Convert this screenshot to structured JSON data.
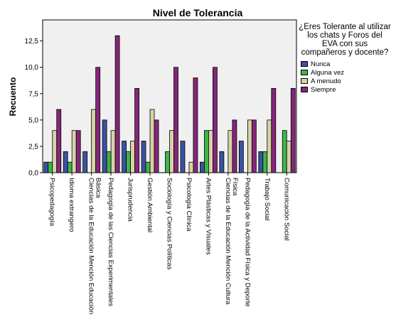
{
  "chart_data": {
    "type": "bar",
    "title": "Nivel de Tolerancia",
    "xlabel": "",
    "ylabel": "Recuento",
    "ylim": [
      0,
      14.5
    ],
    "yticks": [
      "0,0",
      "2,5",
      "5,0",
      "7,5",
      "10,0",
      "12,5"
    ],
    "grid": false,
    "legend_position": "right",
    "legend_title": "¿Eres Tolerante al utilizar los chats y Foros del EVA con sus compañeros y docente?",
    "categories": [
      "Psicopedagogía",
      "Idioma extrangero",
      "Ciencias de la Educación Mención Educación Básica",
      "Pedagogía de las Ciencias Experimentales",
      "Jurisprudencia",
      "Gestión Ambiental",
      "Sociología y Ciencias Políticas",
      "Psicología Clínica",
      "Artes Plásticas y Visuales",
      "Ciencias de la Educación Mención Cultura Física",
      "Pedagogía de la Actividad Física y Deporte",
      "Trabajo Social",
      "Comunicación Social"
    ],
    "series": [
      {
        "name": "Nunca",
        "color": "#3b52a3",
        "values": [
          1,
          2,
          2,
          5,
          3,
          3,
          0,
          3,
          1,
          2,
          3,
          2,
          0
        ]
      },
      {
        "name": "Alguna vez",
        "color": "#3cb54a",
        "values": [
          1,
          1,
          0,
          2,
          2,
          1,
          2,
          0,
          4,
          0,
          0,
          2,
          4
        ]
      },
      {
        "name": "A menudo",
        "color": "#d8d3a6",
        "values": [
          4,
          4,
          6,
          4,
          3,
          6,
          4,
          1,
          4,
          4,
          5,
          5,
          3
        ]
      },
      {
        "name": "Siempre",
        "color": "#86267a",
        "values": [
          6,
          4,
          10,
          13,
          8,
          5,
          10,
          9,
          10,
          5,
          5,
          8,
          8
        ]
      }
    ]
  }
}
